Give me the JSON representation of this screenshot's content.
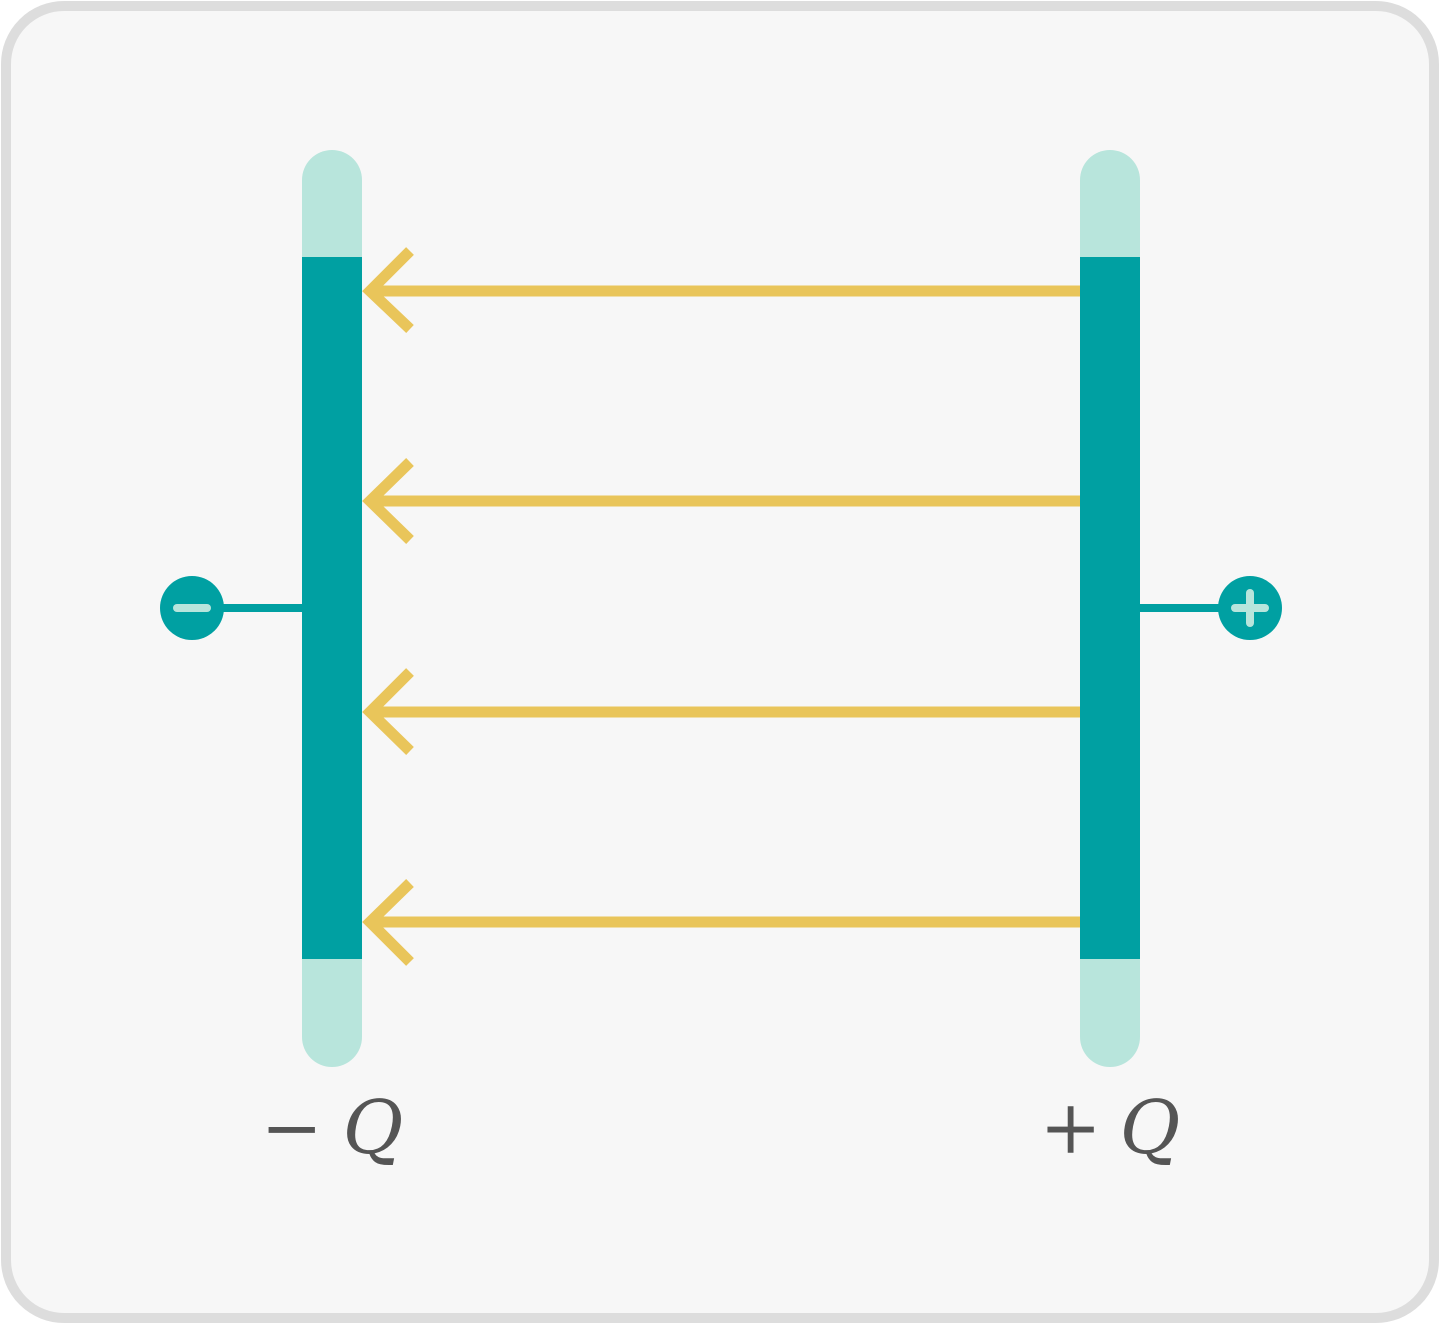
{
  "diagram": {
    "colors": {
      "background": "#f7f7f7",
      "frame_border": "#dddddd",
      "plate": "#00a0a2",
      "plate_end": "#b8e5dc",
      "field_arrow": "#e9c55a",
      "terminal": "#00a0a2",
      "terminal_symbol": "#b8e5dc",
      "label_text": "#555555"
    },
    "field_line_count": 4,
    "field_direction": "right-to-left",
    "left_plate": {
      "terminal_symbol": "−",
      "terminal_icon": "minus-icon",
      "charge_label_sign": "−",
      "charge_label_var": "Q"
    },
    "right_plate": {
      "terminal_symbol": "+",
      "terminal_icon": "plus-icon",
      "charge_label_sign": "+",
      "charge_label_var": "Q"
    }
  }
}
